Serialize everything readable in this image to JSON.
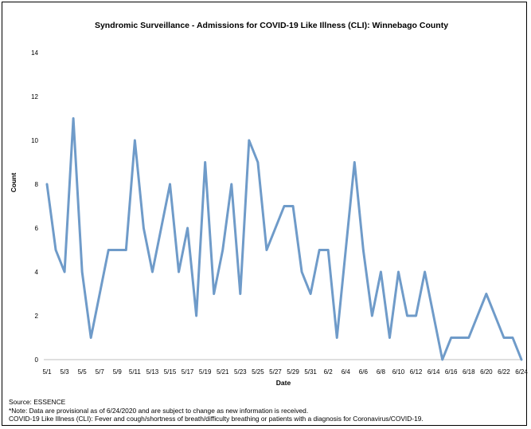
{
  "chart_data": {
    "type": "line",
    "title": "Syndromic Surveillance - Admissions for COVID-19 Like Illness (CLI): Winnebago County",
    "xlabel": "Date",
    "ylabel": "Count",
    "ylim": [
      0,
      14
    ],
    "yticks": [
      0,
      2,
      4,
      6,
      8,
      10,
      12,
      14
    ],
    "grid": false,
    "legend": "none",
    "series_color": "#6f9bc9",
    "x": [
      "5/1",
      "5/2",
      "5/3",
      "5/4",
      "5/5",
      "5/6",
      "5/7",
      "5/8",
      "5/9",
      "5/10",
      "5/11",
      "5/12",
      "5/13",
      "5/14",
      "5/15",
      "5/16",
      "5/17",
      "5/18",
      "5/19",
      "5/20",
      "5/21",
      "5/22",
      "5/23",
      "5/24",
      "5/25",
      "5/26",
      "5/27",
      "5/28",
      "5/29",
      "5/30",
      "5/31",
      "6/1",
      "6/2",
      "6/3",
      "6/4",
      "6/5",
      "6/6",
      "6/7",
      "6/8",
      "6/9",
      "6/10",
      "6/11",
      "6/12",
      "6/13",
      "6/14",
      "6/15",
      "6/16",
      "6/17",
      "6/18",
      "6/19",
      "6/20",
      "6/21",
      "6/22",
      "6/23",
      "6/24"
    ],
    "x_tick_labels": [
      "5/1",
      "5/3",
      "5/5",
      "5/7",
      "5/9",
      "5/11",
      "5/13",
      "5/15",
      "5/17",
      "5/19",
      "5/21",
      "5/23",
      "5/25",
      "5/27",
      "5/29",
      "5/31",
      "6/2",
      "6/4",
      "6/6",
      "6/8",
      "6/10",
      "6/12",
      "6/14",
      "6/16",
      "6/18",
      "6/20",
      "6/22",
      "6/24"
    ],
    "series": [
      {
        "values": [
          8,
          5,
          4,
          11,
          4,
          1,
          3,
          5,
          5,
          5,
          10,
          6,
          4,
          6,
          8,
          4,
          6,
          2,
          9,
          3,
          5,
          8,
          3,
          10,
          9,
          5,
          6,
          7,
          7,
          4,
          3,
          5,
          5,
          1,
          5,
          9,
          5,
          2,
          4,
          1,
          4,
          2,
          2,
          4,
          2,
          0,
          1,
          1,
          1,
          2,
          3,
          2,
          1,
          1,
          0
        ]
      }
    ]
  },
  "notes": {
    "source": "Source: ESSENCE",
    "note": "*Note: Data are provisional as of 6/24/2020 and are subject to change as new information is received.",
    "definition": "COVID-19 Like Illness (CLI): Fever and cough/shortness of breath/difficulty breathing or patients with a diagnosis for Coronavirus/COVID-19."
  }
}
